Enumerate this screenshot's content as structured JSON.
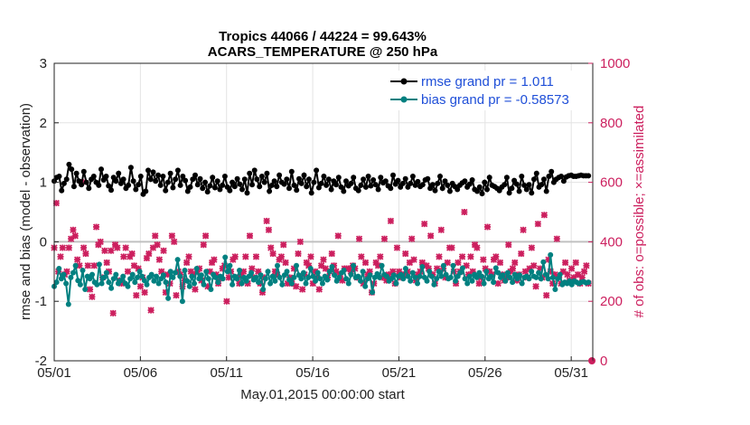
{
  "chart_data": {
    "type": "line",
    "title": "Tropics 44066 / 44224 = 99.643%",
    "subtitle": "ACARS_TEMPERATURE @ 250 hPa",
    "xlabel": "May.01,2015 00:00:00 start",
    "ylabel": "rmse and bias (model - observation)",
    "ylabel_right": "# of obs: o=possible; ×=assimilated",
    "x_ticks": [
      "05/01",
      "05/06",
      "05/11",
      "05/16",
      "05/21",
      "05/26",
      "05/31"
    ],
    "x_tick_days": [
      0,
      5,
      10,
      15,
      20,
      25,
      30
    ],
    "xlim": [
      0,
      31.25
    ],
    "ylim": [
      -2,
      3
    ],
    "y_ticks": [
      "-2",
      "-1",
      "0",
      "1",
      "2",
      "3"
    ],
    "y2lim": [
      0,
      1000
    ],
    "y2_ticks": [
      "0",
      "200",
      "400",
      "600",
      "800",
      "1000"
    ],
    "grid": true,
    "legend_position": "top-right",
    "colors": {
      "rmse": "#000000",
      "bias": "#008080",
      "obs": "#cc1f5e",
      "zero": "#c0c0c0"
    },
    "series": [
      {
        "name": "rmse grand pr = 1.011",
        "key": "rmse",
        "values": [
          1.02,
          1.08,
          1.1,
          0.86,
          0.98,
          1.05,
          1.3,
          1.22,
          0.93,
          1.15,
          1.02,
          0.96,
          1.18,
          1.0,
          0.9,
          1.05,
          1.1,
          1.0,
          0.95,
          1.22,
          1.04,
          1.1,
          0.94,
          0.87,
          1.08,
          1.02,
          1.15,
          0.98,
          1.05,
          0.9,
          0.95,
          1.25,
          1.02,
          0.88,
          0.96,
          1.1,
          0.8,
          0.85,
          1.2,
          1.05,
          1.17,
          1.02,
          1.12,
          0.95,
          1.1,
          0.86,
          1.0,
          1.15,
          0.91,
          1.05,
          1.2,
          0.95,
          1.1,
          1.03,
          0.85,
          0.92,
          1.05,
          1.12,
          0.96,
          1.06,
          0.9,
          1.0,
          0.84,
          0.94,
          1.08,
          0.91,
          1.02,
          0.88,
          0.95,
          1.1,
          0.92,
          0.86,
          1.0,
          0.93,
          1.06,
          0.97,
          0.88,
          1.05,
          0.82,
          1.15,
          0.96,
          1.2,
          1.05,
          0.93,
          1.1,
          1.0,
          1.15,
          0.85,
          0.95,
          1.02,
          0.93,
          1.12,
          1.0,
          0.97,
          1.05,
          0.9,
          1.18,
          0.95,
          0.87,
          1.06,
          0.98,
          1.12,
          0.93,
          1.05,
          0.82,
          1.0,
          1.2,
          0.91,
          0.98,
          1.1,
          0.95,
          1.05,
          0.88,
          1.02,
          0.96,
          1.08,
          0.92,
          0.85,
          1.02,
          0.94,
          0.98,
          1.08,
          0.9,
          0.86,
          0.95,
          1.05,
          0.92,
          1.1,
          0.94,
          1.04,
          0.96,
          0.88,
          1.08,
          0.99,
          1.02,
          0.94,
          0.9,
          1.12,
          0.97,
          1.03,
          0.92,
          0.98,
          1.06,
          0.92,
          0.98,
          1.1,
          0.95,
          1.01,
          0.93,
          0.96,
          1.04,
          1.06,
          0.9,
          0.96,
          0.86,
          0.98,
          1.1,
          0.9,
          1.02,
          0.95,
          0.85,
          0.98,
          0.93,
          0.88,
          0.95,
          0.99,
          1.02,
          0.92,
          0.97,
          1.04,
          0.88,
          0.85,
          0.92,
          0.81,
          1.0,
          0.88,
          1.08,
          0.95,
          0.93,
          0.9,
          0.86,
          0.92,
          0.96,
          1.08,
          0.82,
          0.9,
          1.03,
          0.97,
          0.85,
          1.1,
          0.95,
          0.88,
          0.96,
          0.82,
          1.05,
          1.15,
          0.92,
          0.96,
          1.05,
          0.85,
          1.1,
          1.18,
          1.0,
          1.05,
          1.08,
          1.1,
          1.02,
          1.09,
          1.11,
          1.12,
          1.1,
          1.1,
          1.11,
          1.12,
          1.11,
          1.11,
          1.11
        ]
      },
      {
        "name": "bias grand pr = -0.58573",
        "key": "bias",
        "values": [
          -0.75,
          -0.68,
          -0.45,
          -0.62,
          -0.55,
          -0.7,
          -1.05,
          -0.6,
          -0.52,
          -0.4,
          -0.65,
          -0.72,
          -0.48,
          -0.8,
          -0.58,
          -0.62,
          -0.55,
          -0.68,
          -0.72,
          -0.38,
          -0.7,
          -0.6,
          -0.52,
          -0.68,
          -0.78,
          -0.62,
          -0.55,
          -0.7,
          -0.65,
          -0.58,
          -0.7,
          -0.75,
          -0.62,
          -0.55,
          -0.68,
          -0.6,
          -0.5,
          -0.58,
          -0.65,
          -0.72,
          -0.6,
          -0.55,
          -0.66,
          -0.58,
          -0.7,
          -0.62,
          -0.56,
          -0.68,
          -0.95,
          -0.5,
          -0.6,
          -0.52,
          -0.3,
          -0.58,
          -1.0,
          -0.48,
          -0.66,
          -0.75,
          -0.58,
          -0.7,
          -0.45,
          -0.62,
          -0.56,
          -0.72,
          -0.5,
          -0.62,
          -0.8,
          -0.55,
          -0.6,
          -0.68,
          -0.58,
          -0.62,
          -0.26,
          -0.5,
          -0.4,
          -0.72,
          -0.58,
          -0.62,
          -0.48,
          -0.7,
          -0.6,
          -0.66,
          -0.58,
          -0.52,
          -0.64,
          -0.6,
          -0.68,
          -0.56,
          -0.8,
          -0.62,
          -0.5,
          -0.7,
          -0.58,
          -0.66,
          -0.4,
          -0.6,
          -0.72,
          -0.56,
          -0.5,
          -0.64,
          -0.7,
          -0.6,
          -0.4,
          -0.56,
          -0.62,
          -0.52,
          -0.7,
          -0.6,
          -0.45,
          -0.58,
          -0.66,
          -0.52,
          -0.62,
          -0.7,
          -0.58,
          -0.64,
          -0.5,
          -0.42,
          -0.56,
          -0.66,
          -0.6,
          -0.52,
          -0.48,
          -0.62,
          -0.7,
          -0.55,
          -0.4,
          -0.6,
          -0.58,
          -0.66,
          -0.5,
          -0.75,
          -0.62,
          -0.56,
          -0.85,
          -0.6,
          -0.54,
          -0.6,
          -0.4,
          -0.55,
          -0.58,
          -0.66,
          -0.62,
          -0.56,
          -0.7,
          -0.58,
          -0.55,
          -0.62,
          -0.45,
          -0.58,
          -0.66,
          -0.52,
          -0.6,
          -0.7,
          -0.58,
          -0.42,
          -0.6,
          -0.66,
          -0.5,
          -0.58,
          -0.72,
          -0.62,
          -0.5,
          -0.58,
          -0.4,
          -0.55,
          -0.62,
          -0.6,
          -0.4,
          -0.66,
          -0.58,
          -0.52,
          -0.44,
          -0.62,
          -0.7,
          -0.58,
          -0.66,
          -0.55,
          -0.6,
          -0.52,
          -0.58,
          -0.7,
          -0.5,
          -0.62,
          -0.58,
          -0.68,
          -0.44,
          -0.52,
          -0.6,
          -0.56,
          -0.66,
          -0.52,
          -0.6,
          -0.68,
          -0.55,
          -0.62,
          -0.56,
          -0.7,
          -0.6,
          -0.58,
          -0.62,
          -0.5,
          -0.58,
          -0.6,
          -0.52,
          -0.62,
          -0.34,
          -0.55,
          -0.62,
          -0.22,
          -0.6,
          -0.8,
          -0.62,
          -0.55,
          -0.72,
          -0.68,
          -0.7,
          -0.66,
          -0.72,
          -0.66,
          -0.68,
          -0.7,
          -0.68,
          -0.67,
          -0.69,
          -0.68
        ]
      }
    ],
    "obs_assimilated": [
      380,
      530,
      300,
      350,
      380,
      290,
      300,
      380,
      410,
      440,
      420,
      340,
      320,
      600,
      380,
      360,
      320,
      240,
      215,
      320,
      450,
      390,
      400,
      280,
      370,
      330,
      300,
      370,
      160,
      390,
      380,
      270,
      260,
      350,
      380,
      300,
      350,
      360,
      320,
      220,
      310,
      250,
      280,
      230,
      345,
      360,
      170,
      380,
      420,
      390,
      340,
      300,
      370,
      230,
      290,
      260,
      420,
      400,
      220,
      300,
      290,
      250,
      270,
      330,
      350,
      300,
      290,
      240,
      300,
      310,
      270,
      390,
      420,
      250,
      300,
      330,
      340,
      290,
      260,
      280,
      310,
      320,
      200,
      280,
      300,
      340,
      350,
      280,
      260,
      290,
      300,
      350,
      260,
      420,
      310,
      280,
      350,
      300,
      260,
      230,
      280,
      470,
      440,
      380,
      360,
      300,
      290,
      340,
      350,
      390,
      330,
      260,
      280,
      260,
      310,
      250,
      360,
      400,
      240,
      290,
      330,
      320,
      350,
      260,
      300,
      280,
      240,
      320,
      340,
      310,
      280,
      300,
      360,
      320,
      300,
      420,
      290,
      270,
      310,
      310,
      310,
      300,
      320,
      310,
      280,
      410,
      350,
      260,
      330,
      290,
      300,
      230,
      260,
      330,
      320,
      350,
      280,
      410,
      270,
      290,
      470,
      300,
      260,
      380,
      300,
      280,
      290,
      360,
      300,
      330,
      410,
      340,
      270,
      290,
      300,
      330,
      460,
      320,
      310,
      420,
      290,
      260,
      310,
      350,
      440,
      310,
      280,
      330,
      380,
      380,
      300,
      260,
      330,
      300,
      350,
      500,
      320,
      290,
      350,
      300,
      390,
      380,
      260,
      280,
      340,
      310,
      450,
      300,
      290,
      340,
      350,
      260,
      330,
      290,
      270,
      280,
      390,
      300,
      310,
      330,
      270,
      290,
      360,
      440,
      300,
      280,
      310,
      380,
      320,
      250,
      460,
      310,
      280,
      490,
      220,
      340,
      300,
      260,
      290,
      410,
      280,
      260,
      300,
      330,
      290,
      270,
      310,
      280,
      330,
      290,
      260,
      280,
      300,
      320,
      260
    ]
  }
}
